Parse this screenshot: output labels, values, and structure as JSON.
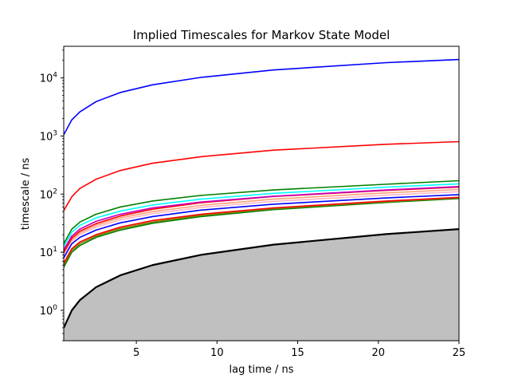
{
  "chart_data": {
    "type": "line",
    "title": "Implied Timescales for Markov State Model",
    "xlabel": "lag time / ns",
    "ylabel": "timescale / ns",
    "xlim": [
      0.5,
      25
    ],
    "ylim": [
      0.3,
      35000
    ],
    "yscale": "log",
    "grid": false,
    "x_ticks": [
      5,
      10,
      15,
      20,
      25
    ],
    "y_ticks": [
      {
        "value": 1,
        "label": "10^0"
      },
      {
        "value": 10,
        "label": "10^1"
      },
      {
        "value": 100,
        "label": "10^2"
      },
      {
        "value": 1000,
        "label": "10^3"
      },
      {
        "value": 10000,
        "label": "10^4"
      }
    ],
    "x": [
      0.5,
      1,
      1.5,
      2.5,
      4,
      6,
      9,
      13.5,
      20.5,
      25
    ],
    "series": [
      {
        "color": "#0000ff",
        "values": [
          1050,
          1900,
          2600,
          3900,
          5600,
          7600,
          10200,
          13700,
          18300,
          20700
        ]
      },
      {
        "color": "#ff0000",
        "values": [
          52,
          90,
          125,
          180,
          255,
          340,
          440,
          570,
          720,
          800
        ]
      },
      {
        "color": "#008000",
        "values": [
          14,
          25,
          33,
          45,
          60,
          76,
          95,
          118,
          148,
          170
        ]
      },
      {
        "color": "#00ffff",
        "values": [
          12.5,
          22,
          29,
          39,
          51,
          65,
          82,
          103,
          132,
          150
        ]
      },
      {
        "color": "#bf00bf",
        "values": [
          11,
          19,
          25,
          34,
          45,
          58,
          73,
          92,
          118,
          135
        ]
      },
      {
        "color": "#ff0000",
        "values": [
          10,
          17.5,
          23,
          31,
          42,
          55,
          71,
          91,
          116,
          132
        ]
      },
      {
        "color": "#ffa07a",
        "values": [
          9.5,
          16.5,
          21.5,
          29,
          39,
          50,
          64,
          82,
          105,
          120
        ]
      },
      {
        "color": "#ffb6c1",
        "values": [
          9,
          15.5,
          20,
          27,
          36,
          46,
          59,
          75,
          96,
          110
        ]
      },
      {
        "color": "#0000ff",
        "values": [
          8,
          14,
          18,
          24,
          32,
          41,
          53,
          67,
          86,
          98
        ]
      },
      {
        "color": "#ff0000",
        "values": [
          6.5,
          11.5,
          15,
          20,
          27,
          35,
          45,
          58,
          76,
          88
        ]
      },
      {
        "color": "#808000",
        "values": [
          6,
          10.8,
          14,
          19,
          25.5,
          33,
          43,
          56,
          74,
          86
        ]
      },
      {
        "color": "#008000",
        "values": [
          5.5,
          10,
          13,
          18,
          24,
          31.5,
          41,
          54,
          72,
          84
        ]
      }
    ],
    "lag_time_line": {
      "color": "#000000",
      "fill_below_color": "#c0c0c0",
      "values": [
        0.5,
        1,
        1.5,
        2.5,
        4,
        6,
        9,
        13.5,
        20.5,
        25
      ]
    }
  }
}
